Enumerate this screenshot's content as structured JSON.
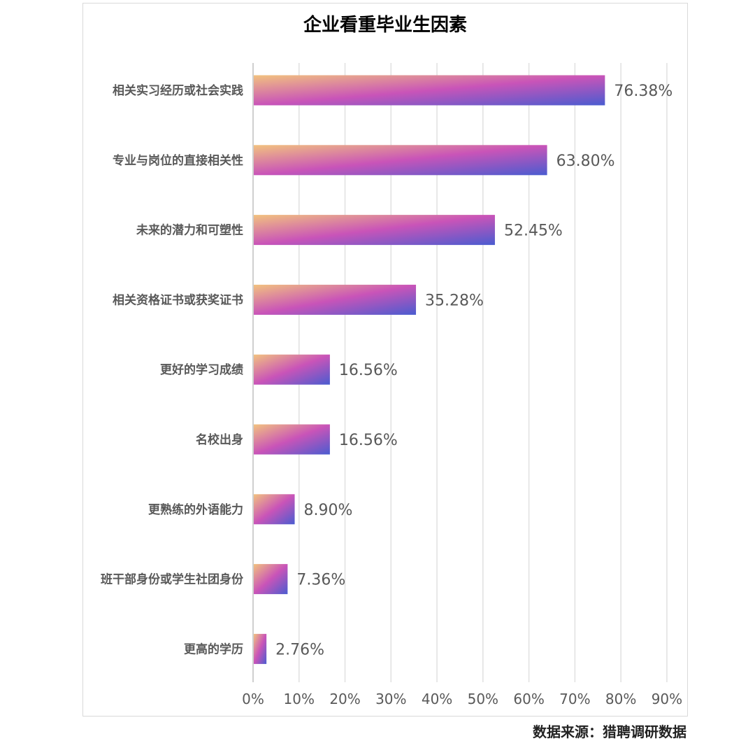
{
  "chart_data": {
    "type": "bar",
    "orientation": "horizontal",
    "title": "企业看重毕业生因素",
    "categories": [
      "相关实习经历或社会实践",
      "专业与岗位的直接相关性",
      "未来的潜力和可塑性",
      "相关资格证书或获奖证书",
      "更好的学习成绩",
      "名校出身",
      "更熟练的外语能力",
      "班干部身份或学生社团身份",
      "更高的学历"
    ],
    "values": [
      76.38,
      63.8,
      52.45,
      35.28,
      16.56,
      16.56,
      8.9,
      7.36,
      2.76
    ],
    "data_labels": [
      "76.38%",
      "63.80%",
      "52.45%",
      "35.28%",
      "16.56%",
      "16.56%",
      "8.90%",
      "7.36%",
      "2.76%"
    ],
    "x_ticks": [
      "0%",
      "10%",
      "20%",
      "30%",
      "40%",
      "50%",
      "60%",
      "70%",
      "80%",
      "90%"
    ],
    "xlim": [
      0,
      90
    ],
    "grid": "vertical",
    "legend": "none",
    "gradient_colors": [
      "#f2c27e",
      "#c954b8",
      "#4a5cd0"
    ],
    "colors": {
      "grid": "#e0e0e0",
      "text": "#595959",
      "title": "#000000"
    }
  },
  "source_note": "数据来源：猎聘调研数据"
}
